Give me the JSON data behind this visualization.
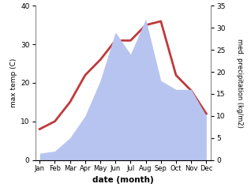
{
  "months": [
    "Jan",
    "Feb",
    "Mar",
    "Apr",
    "May",
    "Jun",
    "Jul",
    "Aug",
    "Sep",
    "Oct",
    "Nov",
    "Dec"
  ],
  "temp": [
    8,
    10,
    15,
    22,
    26,
    31,
    31,
    35,
    36,
    22,
    18,
    12
  ],
  "precip": [
    1.5,
    2,
    5,
    10,
    18,
    29,
    24,
    32,
    18,
    16,
    16,
    10
  ],
  "temp_color": "#c0393b",
  "precip_fill_color": "#b8c4f0",
  "temp_ylim": [
    0,
    40
  ],
  "precip_ylim": [
    0,
    35
  ],
  "temp_yticks": [
    0,
    10,
    20,
    30,
    40
  ],
  "precip_yticks": [
    0,
    5,
    10,
    15,
    20,
    25,
    30,
    35
  ],
  "ylabel_left": "max temp (C)",
  "ylabel_right": "med. precipitation (kg/m2)",
  "xlabel": "date (month)",
  "background_color": "#ffffff",
  "line_width": 2.0,
  "figsize": [
    3.18,
    2.47
  ],
  "dpi": 100
}
